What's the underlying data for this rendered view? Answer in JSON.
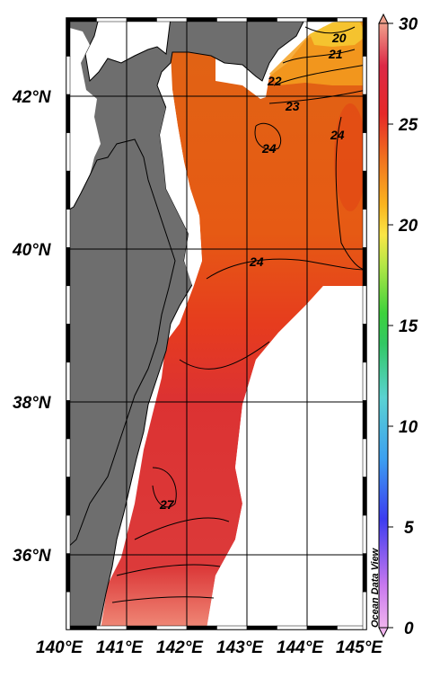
{
  "map": {
    "lon_labels": [
      "140°E",
      "141°E",
      "142°E",
      "143°E",
      "144°E",
      "145°E"
    ],
    "lat_labels": [
      "42°N",
      "40°N",
      "38°N",
      "36°N"
    ],
    "contour_labels": [
      "20",
      "21",
      "22",
      "23",
      "24",
      "24",
      "24",
      "27"
    ],
    "watermark": "Ocean Data View"
  },
  "colorbar": {
    "ticks": [
      "30",
      "25",
      "20",
      "15",
      "10",
      "5",
      "0"
    ],
    "range": [
      0,
      30
    ],
    "colors": [
      "#f0b4ee",
      "#c878ee",
      "#3c3cf0",
      "#3ca0f0",
      "#5ad2d2",
      "#32c864",
      "#3cd23c",
      "#b4e646",
      "#fae646",
      "#fab41e",
      "#f06e1e",
      "#e62828",
      "#dc2846",
      "#f0a08c"
    ]
  },
  "colors": {
    "land": "#6e6e6e",
    "ocean_warm": "#e64a14",
    "ocean_hot": "#dc3232",
    "north_cool": "#f5a01e"
  }
}
